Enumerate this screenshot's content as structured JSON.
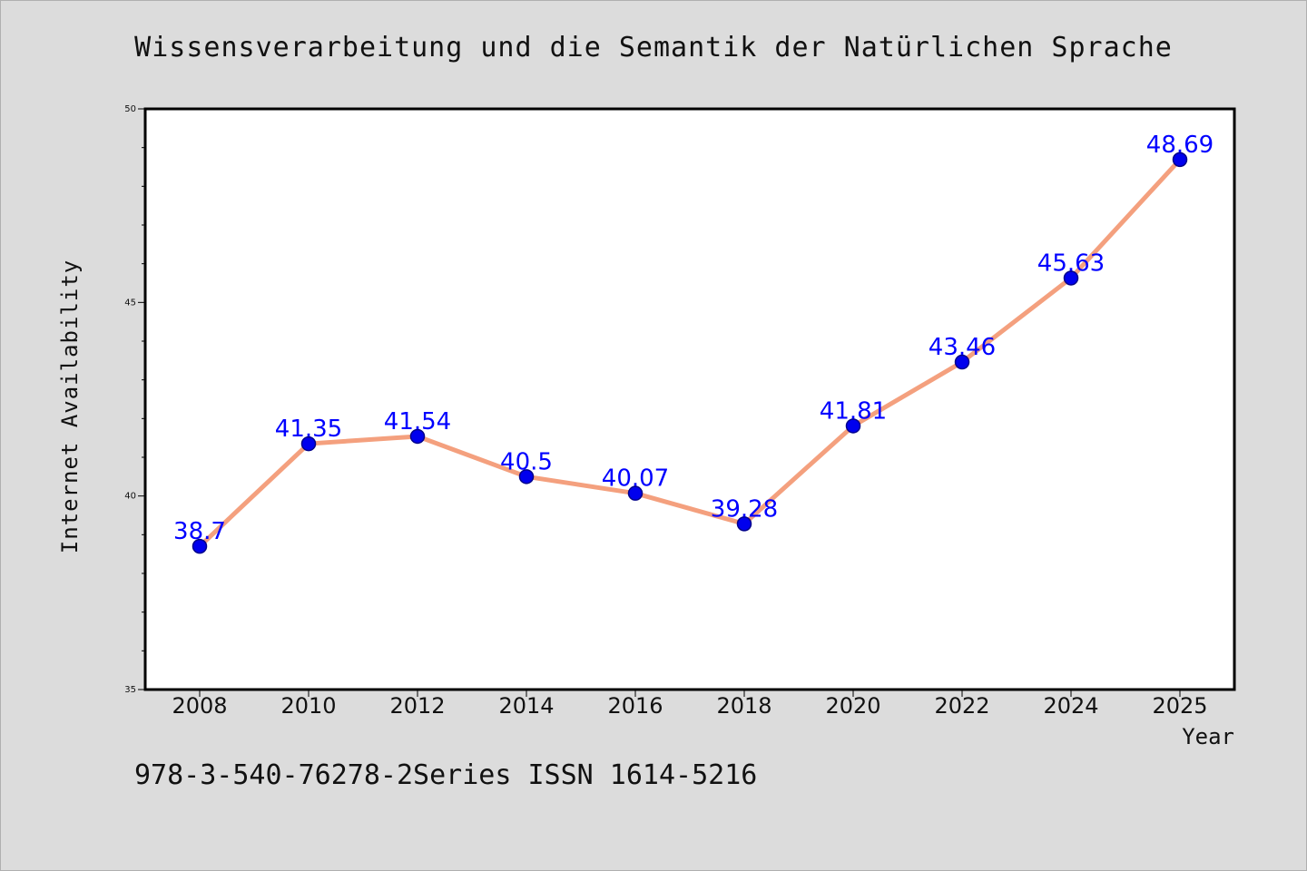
{
  "chart_data": {
    "type": "line",
    "title": "Wissensverarbeitung und die Semantik der Natürlichen Sprache",
    "xlabel": "Year",
    "ylabel": "Internet Availability",
    "categories": [
      "2008",
      "2010",
      "2012",
      "2014",
      "2016",
      "2018",
      "2020",
      "2022",
      "2024",
      "2025"
    ],
    "series": [
      {
        "values": [
          38.7,
          41.35,
          41.54,
          40.5,
          40.07,
          39.28,
          41.81,
          43.46,
          45.63,
          48.69
        ],
        "labels": [
          "38.7",
          "41.35",
          "41.54",
          "40.5",
          "40.07",
          "39.28",
          "41.81",
          "43.46",
          "45.63",
          "48.69"
        ]
      }
    ],
    "ylim": [
      35,
      50
    ],
    "yticks": [
      "35",
      "40",
      "45",
      "50"
    ],
    "grid": false,
    "colors": {
      "line": "#f4a07e",
      "marker": "#0000ee",
      "label": "#0000ff"
    }
  },
  "footer_text": "978-3-540-76278-2Series ISSN 1614-5216"
}
